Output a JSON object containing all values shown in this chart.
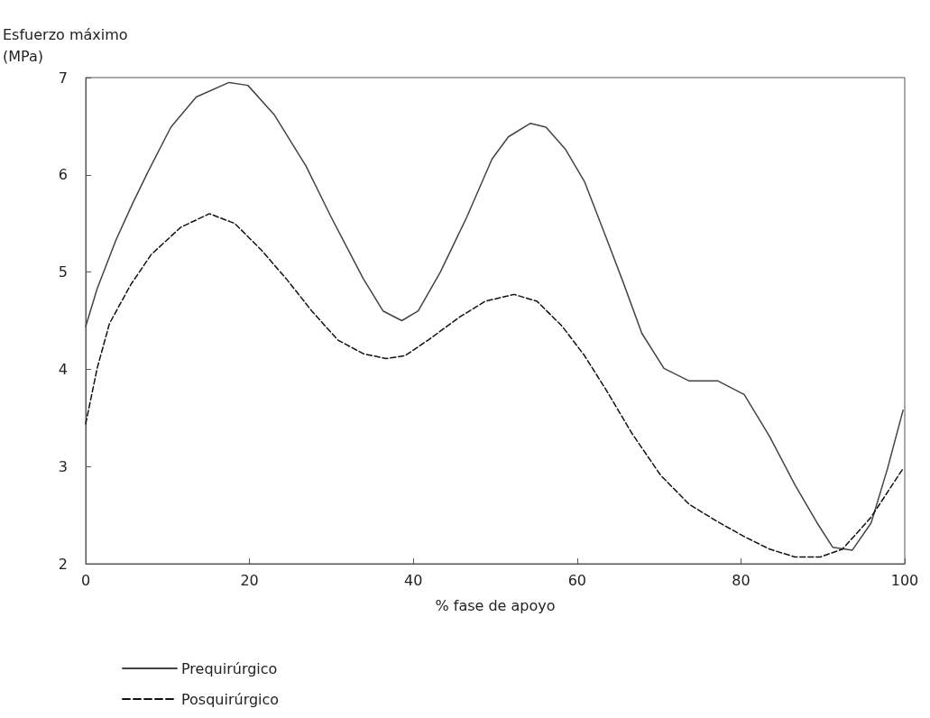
{
  "chart_data": {
    "type": "line",
    "xlabel": "% fase de apoyo",
    "ylabel": "Esfuerzo máximo\n(MPa)",
    "xlim": [
      0,
      100
    ],
    "xticks": [
      0,
      20,
      40,
      60,
      80,
      100
    ],
    "ylim": [
      2,
      7
    ],
    "yticks": [
      2,
      3,
      4,
      5,
      6,
      7
    ],
    "grid": false,
    "legend": "bottom left",
    "marker": "none",
    "series": [
      {
        "name": "Prequirúrgico",
        "color": "#444444",
        "line_style": "solid",
        "x": [
          0,
          1.4,
          3.7,
          5.7,
          7.6,
          10.4,
          13.5,
          17.5,
          19.8,
          23,
          26.9,
          30,
          33.9,
          36.3,
          38.6,
          40.6,
          43.3,
          46.5,
          49.6,
          51.6,
          54.3,
          56.2,
          58.6,
          60.9,
          63.2,
          65.6,
          67.9,
          70.6,
          73.7,
          77.2,
          80.4,
          83.5,
          86.6,
          89.3,
          91.2,
          93.6,
          95.9,
          97.9,
          99.8
        ],
        "values": [
          4.44,
          4.83,
          5.33,
          5.7,
          6.03,
          6.49,
          6.8,
          6.95,
          6.92,
          6.62,
          6.09,
          5.56,
          4.93,
          4.6,
          4.5,
          4.6,
          5.0,
          5.56,
          6.16,
          6.39,
          6.53,
          6.49,
          6.26,
          5.93,
          5.43,
          4.9,
          4.37,
          4.01,
          3.88,
          3.88,
          3.74,
          3.31,
          2.81,
          2.42,
          2.17,
          2.14,
          2.42,
          2.98,
          3.58
        ]
      },
      {
        "name": "Posquirúrgico",
        "color": "#111111",
        "line_style": "dashed",
        "x": [
          0,
          1.4,
          2.9,
          5.5,
          8,
          11.6,
          15.1,
          18.2,
          21.4,
          24.5,
          27.6,
          30.8,
          33.9,
          36.7,
          39,
          41.8,
          45.7,
          48.8,
          52.3,
          55.1,
          58.2,
          60.9,
          63.6,
          66.7,
          70.2,
          73.7,
          77.2,
          80.4,
          83.5,
          86.6,
          89.7,
          92.4,
          95.9,
          99.8
        ],
        "values": [
          3.44,
          4.01,
          4.47,
          4.87,
          5.18,
          5.46,
          5.6,
          5.5,
          5.23,
          4.93,
          4.6,
          4.3,
          4.16,
          4.11,
          4.14,
          4.3,
          4.54,
          4.7,
          4.77,
          4.7,
          4.44,
          4.14,
          3.78,
          3.34,
          2.91,
          2.61,
          2.43,
          2.28,
          2.15,
          2.07,
          2.07,
          2.15,
          2.48,
          2.98
        ]
      }
    ]
  }
}
